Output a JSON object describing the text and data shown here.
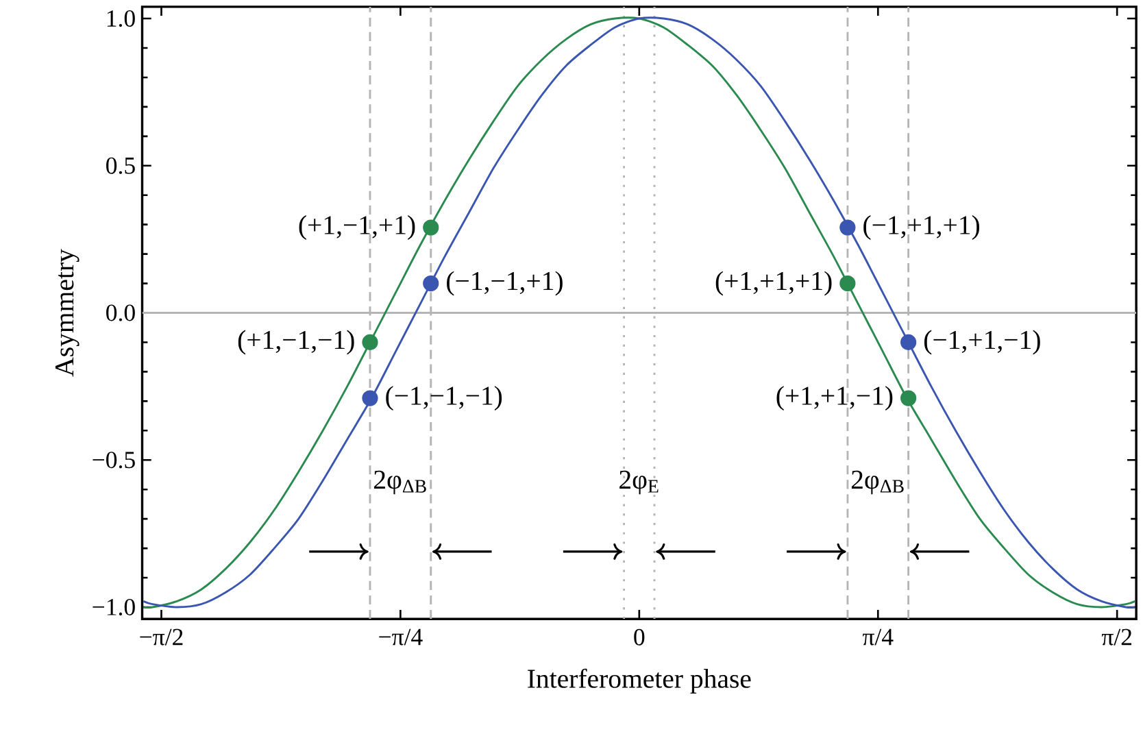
{
  "chart_data": {
    "type": "line",
    "xlabel": "Interferometer phase",
    "ylabel": "Asymmetry",
    "xlim": [
      -1.634,
      1.634
    ],
    "ylim": [
      -1.04,
      1.04
    ],
    "xticks": [
      {
        "value": -1.571,
        "label": "−π/2"
      },
      {
        "value": -0.785,
        "label": "−π/4"
      },
      0,
      {
        "value": 0.785,
        "label": "π/4"
      },
      {
        "value": 1.571,
        "label": "π/2"
      }
    ],
    "yticks": [
      {
        "value": -1,
        "label": "−1.0"
      },
      {
        "value": -0.5,
        "label": "−0.5"
      },
      {
        "value": 0,
        "label": "0.0"
      },
      0.5,
      {
        "value": 1,
        "label": "1.0"
      }
    ],
    "series": [
      {
        "color": "#2a8a4f",
        "x": [
          -1.63,
          -1.6,
          -1.52,
          -1.44,
          -1.36,
          -1.28,
          -1.2,
          -1.12,
          -1.04,
          -0.96,
          -0.88,
          -0.8,
          -0.72,
          -0.64,
          -0.56,
          -0.48,
          -0.4,
          -0.32,
          -0.24,
          -0.16,
          -0.08,
          0,
          0.08,
          0.16,
          0.24,
          0.32,
          0.4,
          0.48,
          0.56,
          0.64,
          0.72,
          0.8,
          0.88,
          0.96,
          1.04,
          1.12,
          1.2,
          1.28,
          1.36,
          1.44,
          1.52,
          1.6,
          1.63
        ],
        "values": [
          -1.0,
          -1.0,
          -0.98,
          -0.94,
          -0.87,
          -0.78,
          -0.67,
          -0.54,
          -0.4,
          -0.25,
          -0.09,
          0.07,
          0.23,
          0.38,
          0.52,
          0.65,
          0.77,
          0.86,
          0.93,
          0.98,
          1.0,
          1.0,
          0.97,
          0.91,
          0.84,
          0.74,
          0.62,
          0.49,
          0.34,
          0.19,
          0.03,
          -0.13,
          -0.29,
          -0.43,
          -0.57,
          -0.7,
          -0.8,
          -0.89,
          -0.95,
          -0.99,
          -1.0,
          -0.99,
          -0.98
        ]
      },
      {
        "color": "#3a56b0",
        "x": [
          -1.63,
          -1.6,
          -1.52,
          -1.44,
          -1.36,
          -1.28,
          -1.2,
          -1.12,
          -1.04,
          -0.96,
          -0.88,
          -0.8,
          -0.72,
          -0.64,
          -0.56,
          -0.48,
          -0.4,
          -0.32,
          -0.24,
          -0.16,
          -0.08,
          0,
          0.08,
          0.16,
          0.24,
          0.32,
          0.4,
          0.48,
          0.56,
          0.64,
          0.72,
          0.8,
          0.88,
          0.96,
          1.04,
          1.12,
          1.2,
          1.28,
          1.36,
          1.44,
          1.52,
          1.6,
          1.63
        ],
        "values": [
          -0.98,
          -0.99,
          -1.0,
          -0.99,
          -0.95,
          -0.89,
          -0.8,
          -0.7,
          -0.57,
          -0.43,
          -0.29,
          -0.13,
          0.03,
          0.19,
          0.34,
          0.49,
          0.62,
          0.74,
          0.84,
          0.91,
          0.97,
          1.0,
          1.0,
          0.98,
          0.93,
          0.86,
          0.77,
          0.65,
          0.52,
          0.38,
          0.23,
          0.07,
          -0.09,
          -0.25,
          -0.4,
          -0.54,
          -0.67,
          -0.78,
          -0.87,
          -0.94,
          -0.98,
          -1.0,
          -1.0
        ]
      },
      {
        "type": "scatter",
        "marker": "circle",
        "color": "#2a8a4f",
        "x": [
          -0.885,
          -0.685,
          0.685,
          0.885
        ],
        "values": [
          -0.1,
          0.29,
          0.1,
          -0.29
        ]
      },
      {
        "type": "scatter",
        "marker": "circle",
        "color": "#3a56b0",
        "x": [
          -0.885,
          -0.685,
          0.685,
          0.885
        ],
        "values": [
          -0.29,
          0.1,
          0.29,
          -0.1
        ]
      }
    ],
    "ref_lines": [
      {
        "axis": "y",
        "value": 0,
        "color": "#b4b4b4",
        "line_style": "solid"
      },
      {
        "axis": "x",
        "value": -0.885,
        "color": "#b4b4b4",
        "line_style": "dashed"
      },
      {
        "axis": "x",
        "value": -0.685,
        "color": "#b4b4b4",
        "line_style": "dashed"
      },
      {
        "axis": "x",
        "value": -0.05,
        "color": "#b4b4b4",
        "line_style": "dotted"
      },
      {
        "axis": "x",
        "value": 0.05,
        "color": "#b4b4b4",
        "line_style": "dotted"
      },
      {
        "axis": "x",
        "value": 0.685,
        "color": "#b4b4b4",
        "line_style": "dashed"
      },
      {
        "axis": "x",
        "value": 0.885,
        "color": "#b4b4b4",
        "line_style": "dashed"
      }
    ],
    "annotations": [
      {
        "text": "(+1,−1,+1)",
        "x": -0.685,
        "y": 0.29
      },
      {
        "text": "(+1,−1,−1)",
        "x": -0.885,
        "y": -0.1
      },
      {
        "text": "(+1,+1,+1)",
        "x": 0.685,
        "y": 0.1
      },
      {
        "text": "(+1,+1,−1)",
        "x": 0.885,
        "y": -0.29
      },
      {
        "text": "(−1,−1,+1)",
        "x": -0.685,
        "y": 0.1
      },
      {
        "text": "(−1,−1,−1)",
        "x": -0.885,
        "y": -0.29
      },
      {
        "text": "(−1,+1,+1)",
        "x": 0.685,
        "y": 0.29
      },
      {
        "text": "(−1,+1,−1)",
        "x": 0.885,
        "y": -0.1
      },
      "2φ$_{ΔB}$",
      "2φ$_{E}$",
      "2φ$_{ΔB}$"
    ]
  }
}
